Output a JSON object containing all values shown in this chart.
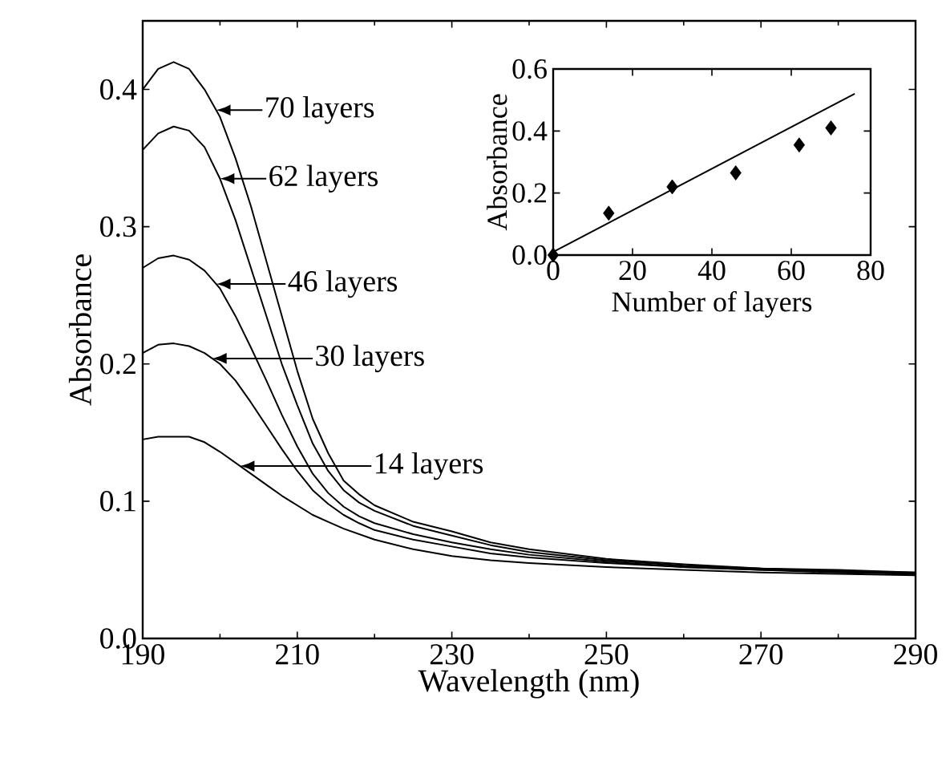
{
  "chart_data": [
    {
      "type": "line",
      "xlabel": "Wavelength (nm)",
      "ylabel": "Absorbance",
      "x": [
        190,
        192,
        194,
        196,
        198,
        200,
        202,
        204,
        206,
        208,
        210,
        212,
        214,
        216,
        218,
        220,
        225,
        230,
        235,
        240,
        250,
        260,
        270,
        280,
        290
      ],
      "series": [
        {
          "name": "70 layers",
          "color": "#000000",
          "values": [
            0.4,
            0.415,
            0.42,
            0.415,
            0.4,
            0.38,
            0.35,
            0.315,
            0.275,
            0.235,
            0.195,
            0.16,
            0.135,
            0.115,
            0.105,
            0.097,
            0.085,
            0.078,
            0.07,
            0.065,
            0.058,
            0.054,
            0.051,
            0.05,
            0.048
          ]
        },
        {
          "name": "62 layers",
          "color": "#000000",
          "values": [
            0.356,
            0.368,
            0.373,
            0.37,
            0.358,
            0.335,
            0.305,
            0.27,
            0.235,
            0.2,
            0.17,
            0.142,
            0.122,
            0.108,
            0.099,
            0.093,
            0.082,
            0.075,
            0.068,
            0.063,
            0.057,
            0.053,
            0.051,
            0.049,
            0.048
          ]
        },
        {
          "name": "46 layers",
          "color": "#000000",
          "values": [
            0.27,
            0.277,
            0.279,
            0.276,
            0.268,
            0.255,
            0.235,
            0.212,
            0.188,
            0.163,
            0.14,
            0.12,
            0.106,
            0.096,
            0.089,
            0.084,
            0.076,
            0.07,
            0.065,
            0.061,
            0.056,
            0.052,
            0.05,
            0.049,
            0.047
          ]
        },
        {
          "name": "30 layers",
          "color": "#000000",
          "values": [
            0.208,
            0.214,
            0.215,
            0.213,
            0.208,
            0.2,
            0.188,
            0.172,
            0.155,
            0.138,
            0.122,
            0.108,
            0.098,
            0.09,
            0.084,
            0.079,
            0.072,
            0.067,
            0.062,
            0.059,
            0.055,
            0.052,
            0.05,
            0.048,
            0.047
          ]
        },
        {
          "name": "14 layers",
          "color": "#000000",
          "values": [
            0.145,
            0.147,
            0.147,
            0.147,
            0.143,
            0.136,
            0.128,
            0.12,
            0.112,
            0.104,
            0.097,
            0.09,
            0.085,
            0.08,
            0.076,
            0.072,
            0.065,
            0.06,
            0.057,
            0.055,
            0.052,
            0.05,
            0.048,
            0.047,
            0.046
          ]
        }
      ],
      "xlim": [
        190,
        290
      ],
      "ylim": [
        0,
        0.45
      ],
      "xticks": [
        190,
        210,
        230,
        250,
        270,
        290
      ],
      "yticks": [
        {
          "value": 0,
          "label": "0.0"
        },
        {
          "value": 0.1,
          "label": "0.1"
        },
        {
          "value": 0.2,
          "label": "0.2"
        },
        {
          "value": 0.3,
          "label": "0.3"
        },
        {
          "value": 0.4,
          "label": "0.4"
        }
      ],
      "grid": false,
      "legend": "top left"
    },
    {
      "type": "scatter",
      "xlabel": "Number of layers",
      "ylabel": "Absorbance",
      "marker": "diamond",
      "series": [
        {
          "color": "#000000",
          "x": [
            0,
            14,
            30,
            46,
            62,
            70
          ],
          "values": [
            0,
            0.135,
            0.22,
            0.265,
            0.355,
            0.41
          ]
        },
        {
          "type": "line",
          "color": "#000000",
          "marker": "none",
          "x": [
            0,
            76
          ],
          "values": [
            0.01,
            0.52
          ]
        }
      ],
      "xlim": [
        0,
        80
      ],
      "ylim": [
        0,
        0.6
      ],
      "xticks": [
        0,
        20,
        40,
        60,
        80
      ],
      "yticks": [
        {
          "value": 0,
          "label": "0.0"
        },
        {
          "value": 0.2,
          "label": "0.2"
        },
        {
          "value": 0.4,
          "label": "0.4"
        },
        {
          "value": 0.6,
          "label": "0.6"
        }
      ],
      "grid": false,
      "legend": false
    }
  ]
}
